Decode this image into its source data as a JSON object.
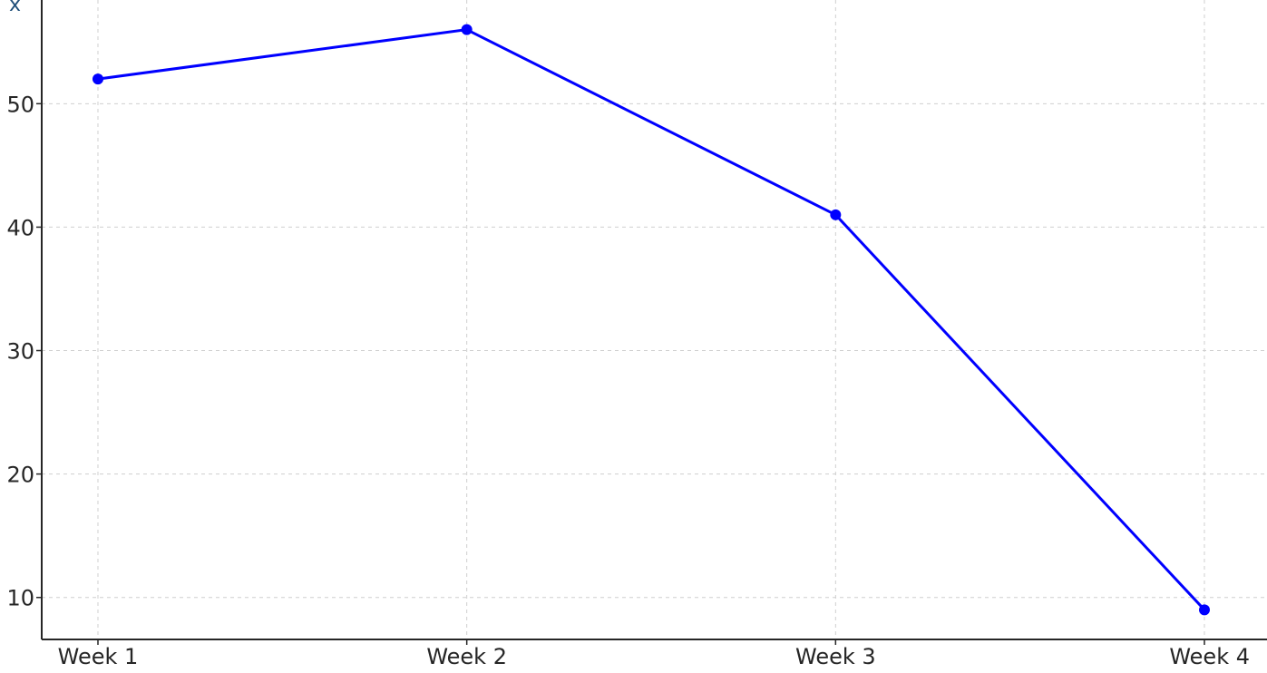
{
  "corner_text": "x",
  "colors": {
    "series": "#0000ff",
    "grid": "#cfcfcf",
    "axis": "#262626"
  },
  "chart_data": {
    "type": "line",
    "categories": [
      "Week 1",
      "Week 2",
      "Week 3",
      "Week 4"
    ],
    "series": [
      {
        "values": [
          52,
          56,
          41,
          9
        ]
      }
    ],
    "title": "",
    "xlabel": "",
    "ylabel": "",
    "ylim": [
      6.6,
      58.4
    ],
    "yticks": [
      10,
      20,
      30,
      40,
      50
    ],
    "grid": true,
    "markers": true
  }
}
